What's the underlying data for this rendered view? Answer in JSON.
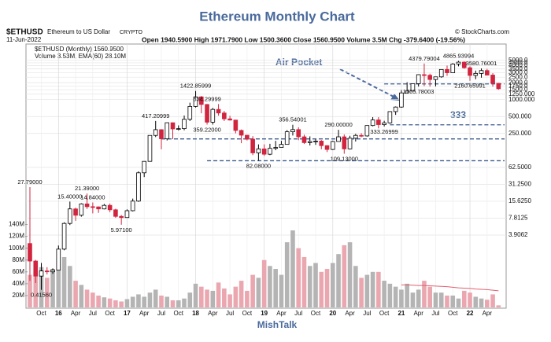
{
  "chart_data": {
    "type": "candlestick",
    "title": "Ethereum Monthly Chart",
    "header": {
      "symbol": "$ETHUSD",
      "name": "Ethereum to US Dollar",
      "exchange": "CRYPTO",
      "date": "11-Jun-2022",
      "quote": "Open 1940.5900  High 1971.7900  Low 1500.3600  Close 1560.9500  Volume 3.5M  Chg -379.6400 (-19.56%)",
      "source": "© StockCharts.com"
    },
    "legend": [
      "$ETHUSD (Monthly) 1560.9500",
      "Volume 3.53M, EMA(60) 28.10M"
    ],
    "annotations": [
      "Air Pocket",
      "333"
    ],
    "footer": "MishTalk",
    "log_scale": true,
    "grid": true,
    "up_color": "#000000",
    "down_color": "#d0243f",
    "volume_up_color": "#b4b4b4",
    "volume_down_color": "#eaa7b0",
    "ema_color": "#e06070",
    "line_color": "#3a5a8c",
    "categories": [
      null,
      null,
      "Oct",
      null,
      null,
      "16",
      null,
      null,
      "Apr",
      null,
      null,
      "Jul",
      null,
      null,
      "Oct",
      null,
      null,
      "17",
      null,
      null,
      "Apr",
      null,
      null,
      "Jul",
      null,
      null,
      "Oct",
      null,
      null,
      "18",
      null,
      null,
      "Apr",
      null,
      null,
      "Jul",
      null,
      null,
      "Oct",
      null,
      null,
      "19",
      null,
      null,
      "Apr",
      null,
      null,
      "Jul",
      null,
      null,
      "Oct",
      null,
      null,
      "20",
      null,
      null,
      "Apr",
      null,
      null,
      "Jul",
      null,
      null,
      "Oct",
      null,
      null,
      "21",
      null,
      null,
      "Apr",
      null,
      null,
      "Jul",
      null,
      null,
      "Oct",
      null,
      null,
      "22",
      null,
      null,
      "Apr",
      null,
      null
    ],
    "candles": [
      {
        "open": 2.77,
        "high": 27.79,
        "low": 0.6,
        "close": 1.35,
        "volume": 55000000.0,
        "high_label": "27.79000"
      },
      {
        "open": 1.35,
        "high": 1.42,
        "low": 0.55,
        "close": 0.73,
        "volume": 60000000.0
      },
      {
        "open": 0.73,
        "high": 1.25,
        "low": 0.4156,
        "close": 0.9,
        "volume": 68000000.0,
        "low_label": "0.41560"
      },
      {
        "open": 0.9,
        "high": 1.05,
        "low": 0.78,
        "close": 0.87,
        "volume": 50000000.0
      },
      {
        "open": 0.87,
        "high": 1.0,
        "low": 0.8,
        "close": 0.93,
        "volume": 65000000.0
      },
      {
        "open": 0.93,
        "high": 2.55,
        "low": 0.93,
        "close": 2.2,
        "volume": 75000000.0
      },
      {
        "open": 2.2,
        "high": 6.6,
        "low": 2.1,
        "close": 6.3,
        "volume": 85000000.0
      },
      {
        "open": 6.3,
        "high": 15.4,
        "low": 5.9,
        "close": 11.4,
        "volume": 70000000.0,
        "high_label": "15.40000"
      },
      {
        "open": 11.4,
        "high": 12.0,
        "low": 7.0,
        "close": 8.8,
        "volume": 45000000.0
      },
      {
        "open": 8.8,
        "high": 14.4,
        "low": 8.3,
        "close": 14.0,
        "volume": 38000000.0
      },
      {
        "open": 14.0,
        "high": 21.39,
        "low": 11.4,
        "close": 12.5,
        "volume": 30000000.0,
        "high_label": "21.39000"
      },
      {
        "open": 12.5,
        "high": 14.84,
        "low": 9.5,
        "close": 12.4,
        "volume": 25000000.0,
        "high_label": "14.84000"
      },
      {
        "open": 12.4,
        "high": 12.6,
        "low": 9.7,
        "close": 11.4,
        "volume": 20000000.0
      },
      {
        "open": 11.4,
        "high": 14.0,
        "low": 11.2,
        "close": 13.2,
        "volume": 17000000.0
      },
      {
        "open": 13.2,
        "high": 14.2,
        "low": 10.0,
        "close": 11.0,
        "volume": 15000000.0
      },
      {
        "open": 11.0,
        "high": 11.5,
        "low": 7.9,
        "close": 8.4,
        "volume": 12000000.0
      },
      {
        "open": 8.4,
        "high": 8.9,
        "low": 5.971,
        "close": 8.0,
        "volume": 10000000.0,
        "low_label": "5.97100"
      },
      {
        "open": 8.0,
        "high": 11.2,
        "low": 7.95,
        "close": 10.6,
        "volume": 14000000.0
      },
      {
        "open": 10.6,
        "high": 17.4,
        "low": 10.3,
        "close": 15.7,
        "volume": 18000000.0
      },
      {
        "open": 15.7,
        "high": 53,
        "low": 15.2,
        "close": 50,
        "volume": 22000000.0
      },
      {
        "open": 50,
        "high": 80,
        "low": 42,
        "close": 80,
        "volume": 18000000.0
      },
      {
        "open": 80,
        "high": 232,
        "low": 80,
        "close": 231,
        "volume": 25000000.0
      },
      {
        "open": 231,
        "high": 417.20999,
        "low": 216,
        "close": 292,
        "volume": 30000000.0,
        "high_label": "417.20999"
      },
      {
        "open": 292,
        "high": 298,
        "low": 131,
        "close": 201,
        "volume": 20000000.0
      },
      {
        "open": 201,
        "high": 392,
        "low": 188,
        "close": 388,
        "volume": 18000000.0
      },
      {
        "open": 388,
        "high": 393,
        "low": 198,
        "close": 301,
        "volume": 12000000.0
      },
      {
        "open": 301,
        "high": 348,
        "low": 283,
        "close": 305,
        "volume": 12000000.0
      },
      {
        "open": 305,
        "high": 522,
        "low": 285,
        "close": 447,
        "volume": 15000000.0
      },
      {
        "open": 447,
        "high": 880,
        "low": 417,
        "close": 756,
        "volume": 25000000.0
      },
      {
        "open": 756,
        "high": 1422.85999,
        "low": 723,
        "close": 1118,
        "volume": 40000000.0,
        "high_label": "1422.85999"
      },
      {
        "open": 1118,
        "high": 1160,
        "low": 571,
        "close": 820,
        "volume": 35000000.0
      },
      {
        "open": 820,
        "high": 834.29999,
        "low": 359.22,
        "close": 397,
        "volume": 30000000.0,
        "high_label": "834.29999",
        "low_label": "359.22000"
      },
      {
        "open": 397,
        "high": 712,
        "low": 360,
        "close": 669,
        "volume": 28000000.0
      },
      {
        "open": 669,
        "high": 834,
        "low": 519,
        "close": 578,
        "volume": 42000000.0
      },
      {
        "open": 578,
        "high": 628,
        "low": 415,
        "close": 455,
        "volume": 32000000.0
      },
      {
        "open": 455,
        "high": 515,
        "low": 425,
        "close": 433,
        "volume": 22000000.0
      },
      {
        "open": 433,
        "high": 437,
        "low": 252,
        "close": 283,
        "volume": 35000000.0
      },
      {
        "open": 283,
        "high": 294,
        "low": 168,
        "close": 233,
        "volume": 45000000.0
      },
      {
        "open": 233,
        "high": 235,
        "low": 188,
        "close": 198,
        "volume": 28000000.0
      },
      {
        "open": 198,
        "high": 224,
        "low": 103,
        "close": 113,
        "volume": 55000000.0
      },
      {
        "open": 113,
        "high": 160,
        "low": 82.08,
        "close": 133,
        "volume": 50000000.0,
        "low_label": "82.08000"
      },
      {
        "open": 133,
        "high": 160,
        "low": 100,
        "close": 107,
        "volume": 80000000.0
      },
      {
        "open": 107,
        "high": 164,
        "low": 103,
        "close": 136,
        "volume": 70000000.0
      },
      {
        "open": 136,
        "high": 185,
        "low": 126,
        "close": 141,
        "volume": 65000000.0
      },
      {
        "open": 141,
        "high": 185,
        "low": 140,
        "close": 160,
        "volume": 55000000.0
      },
      {
        "open": 160,
        "high": 287,
        "low": 158,
        "close": 268,
        "volume": 110000000.0
      },
      {
        "open": 268,
        "high": 356.54001,
        "low": 230,
        "close": 293,
        "volume": 130000000.0,
        "high_label": "356.54001"
      },
      {
        "open": 293,
        "high": 322,
        "low": 190,
        "close": 218,
        "volume": 100000000.0
      },
      {
        "open": 218,
        "high": 238,
        "low": 163,
        "close": 172,
        "volume": 85000000.0
      },
      {
        "open": 172,
        "high": 222,
        "low": 153,
        "close": 180,
        "volume": 70000000.0
      },
      {
        "open": 180,
        "high": 198,
        "low": 157,
        "close": 183,
        "volume": 75000000.0
      },
      {
        "open": 183,
        "high": 191,
        "low": 131,
        "close": 152,
        "volume": 60000000.0
      },
      {
        "open": 152,
        "high": 154,
        "low": 117,
        "close": 130,
        "volume": 65000000.0
      },
      {
        "open": 130,
        "high": 185,
        "low": 127,
        "close": 180,
        "volume": 75000000.0
      },
      {
        "open": 180,
        "high": 290,
        "low": 180,
        "close": 218,
        "volume": 90000000.0,
        "high_label": "290.00000"
      },
      {
        "open": 218,
        "high": 240,
        "low": 109.13,
        "close": 133,
        "volume": 105000000.0,
        "low_label": "109.13000"
      },
      {
        "open": 133,
        "high": 227,
        "low": 130,
        "close": 206,
        "volume": 110000000.0
      },
      {
        "open": 206,
        "high": 246,
        "low": 180,
        "close": 231,
        "volume": 70000000.0
      },
      {
        "open": 231,
        "high": 253,
        "low": 215,
        "close": 226,
        "volume": 50000000.0
      },
      {
        "open": 226,
        "high": 347,
        "low": 220,
        "close": 346,
        "volume": 55000000.0
      },
      {
        "open": 346,
        "high": 488,
        "low": 335,
        "close": 435,
        "volume": 60000000.0
      },
      {
        "open": 435,
        "high": 488,
        "low": 308,
        "close": 359,
        "volume": 60000000.0
      },
      {
        "open": 359,
        "high": 420,
        "low": 333.26999,
        "close": 386,
        "volume": 45000000.0,
        "low_label": "333.26999"
      },
      {
        "open": 386,
        "high": 622,
        "low": 373,
        "close": 612,
        "volume": 40000000.0
      },
      {
        "open": 612,
        "high": 755,
        "low": 535,
        "close": 737,
        "volume": 35000000.0
      },
      {
        "open": 737,
        "high": 1475,
        "low": 718,
        "close": 1314,
        "volume": 30000000.0
      },
      {
        "open": 1314,
        "high": 2036,
        "low": 1293,
        "close": 1417,
        "volume": 40000000.0
      },
      {
        "open": 1417,
        "high": 1943,
        "low": 1420,
        "close": 1918,
        "volume": 25000000.0
      },
      {
        "open": 1918,
        "high": 2790,
        "low": 1705.78003,
        "close": 2773,
        "volume": 30000000.0,
        "low_label": "1705.78003"
      },
      {
        "open": 2773,
        "high": 4379.79004,
        "low": 1736,
        "close": 2707,
        "volume": 45000000.0,
        "high_label": "4379.79004"
      },
      {
        "open": 2707,
        "high": 2892,
        "low": 1700,
        "close": 2275,
        "volume": 35000000.0
      },
      {
        "open": 2275,
        "high": 2550,
        "low": 1718,
        "close": 2536,
        "volume": 25000000.0
      },
      {
        "open": 2536,
        "high": 3470,
        "low": 2450,
        "close": 3433,
        "volume": 25000000.0
      },
      {
        "open": 3433,
        "high": 4028,
        "low": 2650,
        "close": 3001,
        "volume": 20000000.0
      },
      {
        "open": 3001,
        "high": 4460,
        "low": 2965,
        "close": 4288,
        "volume": 20000000.0
      },
      {
        "open": 4288,
        "high": 4865.93994,
        "low": 3900,
        "close": 4631,
        "volume": 15000000.0,
        "high_label": "4865.93994"
      },
      {
        "open": 4631,
        "high": 4780,
        "low": 3530,
        "close": 3683,
        "volume": 28000000.0
      },
      {
        "open": 3683,
        "high": 3900,
        "low": 2160.65991,
        "close": 2688,
        "volume": 25000000.0,
        "low_label": "2160.65991"
      },
      {
        "open": 2688,
        "high": 3280,
        "low": 2300,
        "close": 2920,
        "volume": 18000000.0
      },
      {
        "open": 2920,
        "high": 3580.76001,
        "low": 2450,
        "close": 3282,
        "volume": 15000000.0,
        "high_label": "3580.76001"
      },
      {
        "open": 3282,
        "high": 3520,
        "low": 2700,
        "close": 2727,
        "volume": 13000000.0
      },
      {
        "open": 2727,
        "high": 2950,
        "low": 1700,
        "close": 1942,
        "volume": 22000000.0
      },
      {
        "open": 1940.59,
        "high": 1971.79,
        "low": 1500.36,
        "close": 1560.95,
        "volume": 3500000.0
      }
    ],
    "ema": [
      null,
      null,
      null,
      null,
      null,
      null,
      null,
      null,
      null,
      null,
      null,
      null,
      null,
      null,
      null,
      null,
      null,
      null,
      null,
      null,
      null,
      null,
      null,
      null,
      null,
      null,
      null,
      null,
      null,
      null,
      null,
      null,
      null,
      null,
      null,
      null,
      null,
      null,
      null,
      null,
      null,
      null,
      null,
      null,
      null,
      null,
      null,
      null,
      null,
      null,
      null,
      null,
      null,
      null,
      null,
      null,
      null,
      null,
      null,
      null,
      null,
      null,
      null,
      null,
      null,
      38000000.0,
      38000000.0,
      37500000.0,
      37000000.0,
      37000000.0,
      36500000.0,
      36000000.0,
      35500000.0,
      35000000.0,
      34000000.0,
      33000000.0,
      32500000.0,
      32000000.0,
      31000000.0,
      30500000.0,
      30000000.0,
      29000000.0,
      28100000.0
    ],
    "reference_lines": [
      1900,
      356,
      200,
      82
    ],
    "ylim": [
      0.35,
      6000
    ],
    "yticks": [
      {
        "value": 5000,
        "label": "5000.0"
      },
      {
        "value": 4500,
        "label": "4500.0"
      },
      {
        "value": 4000,
        "label": "4000.0"
      },
      {
        "value": 3500,
        "label": "3500.0"
      },
      {
        "value": 3000,
        "label": "3000.0"
      },
      {
        "value": 2500,
        "label": "2500.0"
      },
      {
        "value": 2000,
        "label": "2000.0"
      },
      {
        "value": 1750,
        "label": "1750.0"
      },
      {
        "value": 1500,
        "label": "1500.0"
      },
      {
        "value": 1250,
        "label": "1250.000"
      },
      {
        "value": 1000,
        "label": "1000.000"
      },
      {
        "value": 500,
        "label": "500.000"
      },
      {
        "value": 250,
        "label": "250.000"
      },
      {
        "value": 62.5,
        "label": "62.5000"
      },
      {
        "value": 31.25,
        "label": "31.2500"
      },
      {
        "value": 15.625,
        "label": "15.6250"
      },
      {
        "value": 7.8125,
        "label": "7.8125"
      },
      {
        "value": 3.90625,
        "label": "3.9062"
      }
    ],
    "volume_ylim": [
      0,
      150000000.0
    ],
    "volume_ticks": [
      {
        "value": 20000000.0,
        "label": "20M"
      },
      {
        "value": 40000000.0,
        "label": "40M"
      },
      {
        "value": 60000000.0,
        "label": "60M"
      },
      {
        "value": 80000000.0,
        "label": "80M"
      },
      {
        "value": 100000000.0,
        "label": "100M"
      },
      {
        "value": 120000000.0,
        "label": "120M"
      },
      {
        "value": 140000000.0,
        "label": "140M"
      }
    ]
  }
}
